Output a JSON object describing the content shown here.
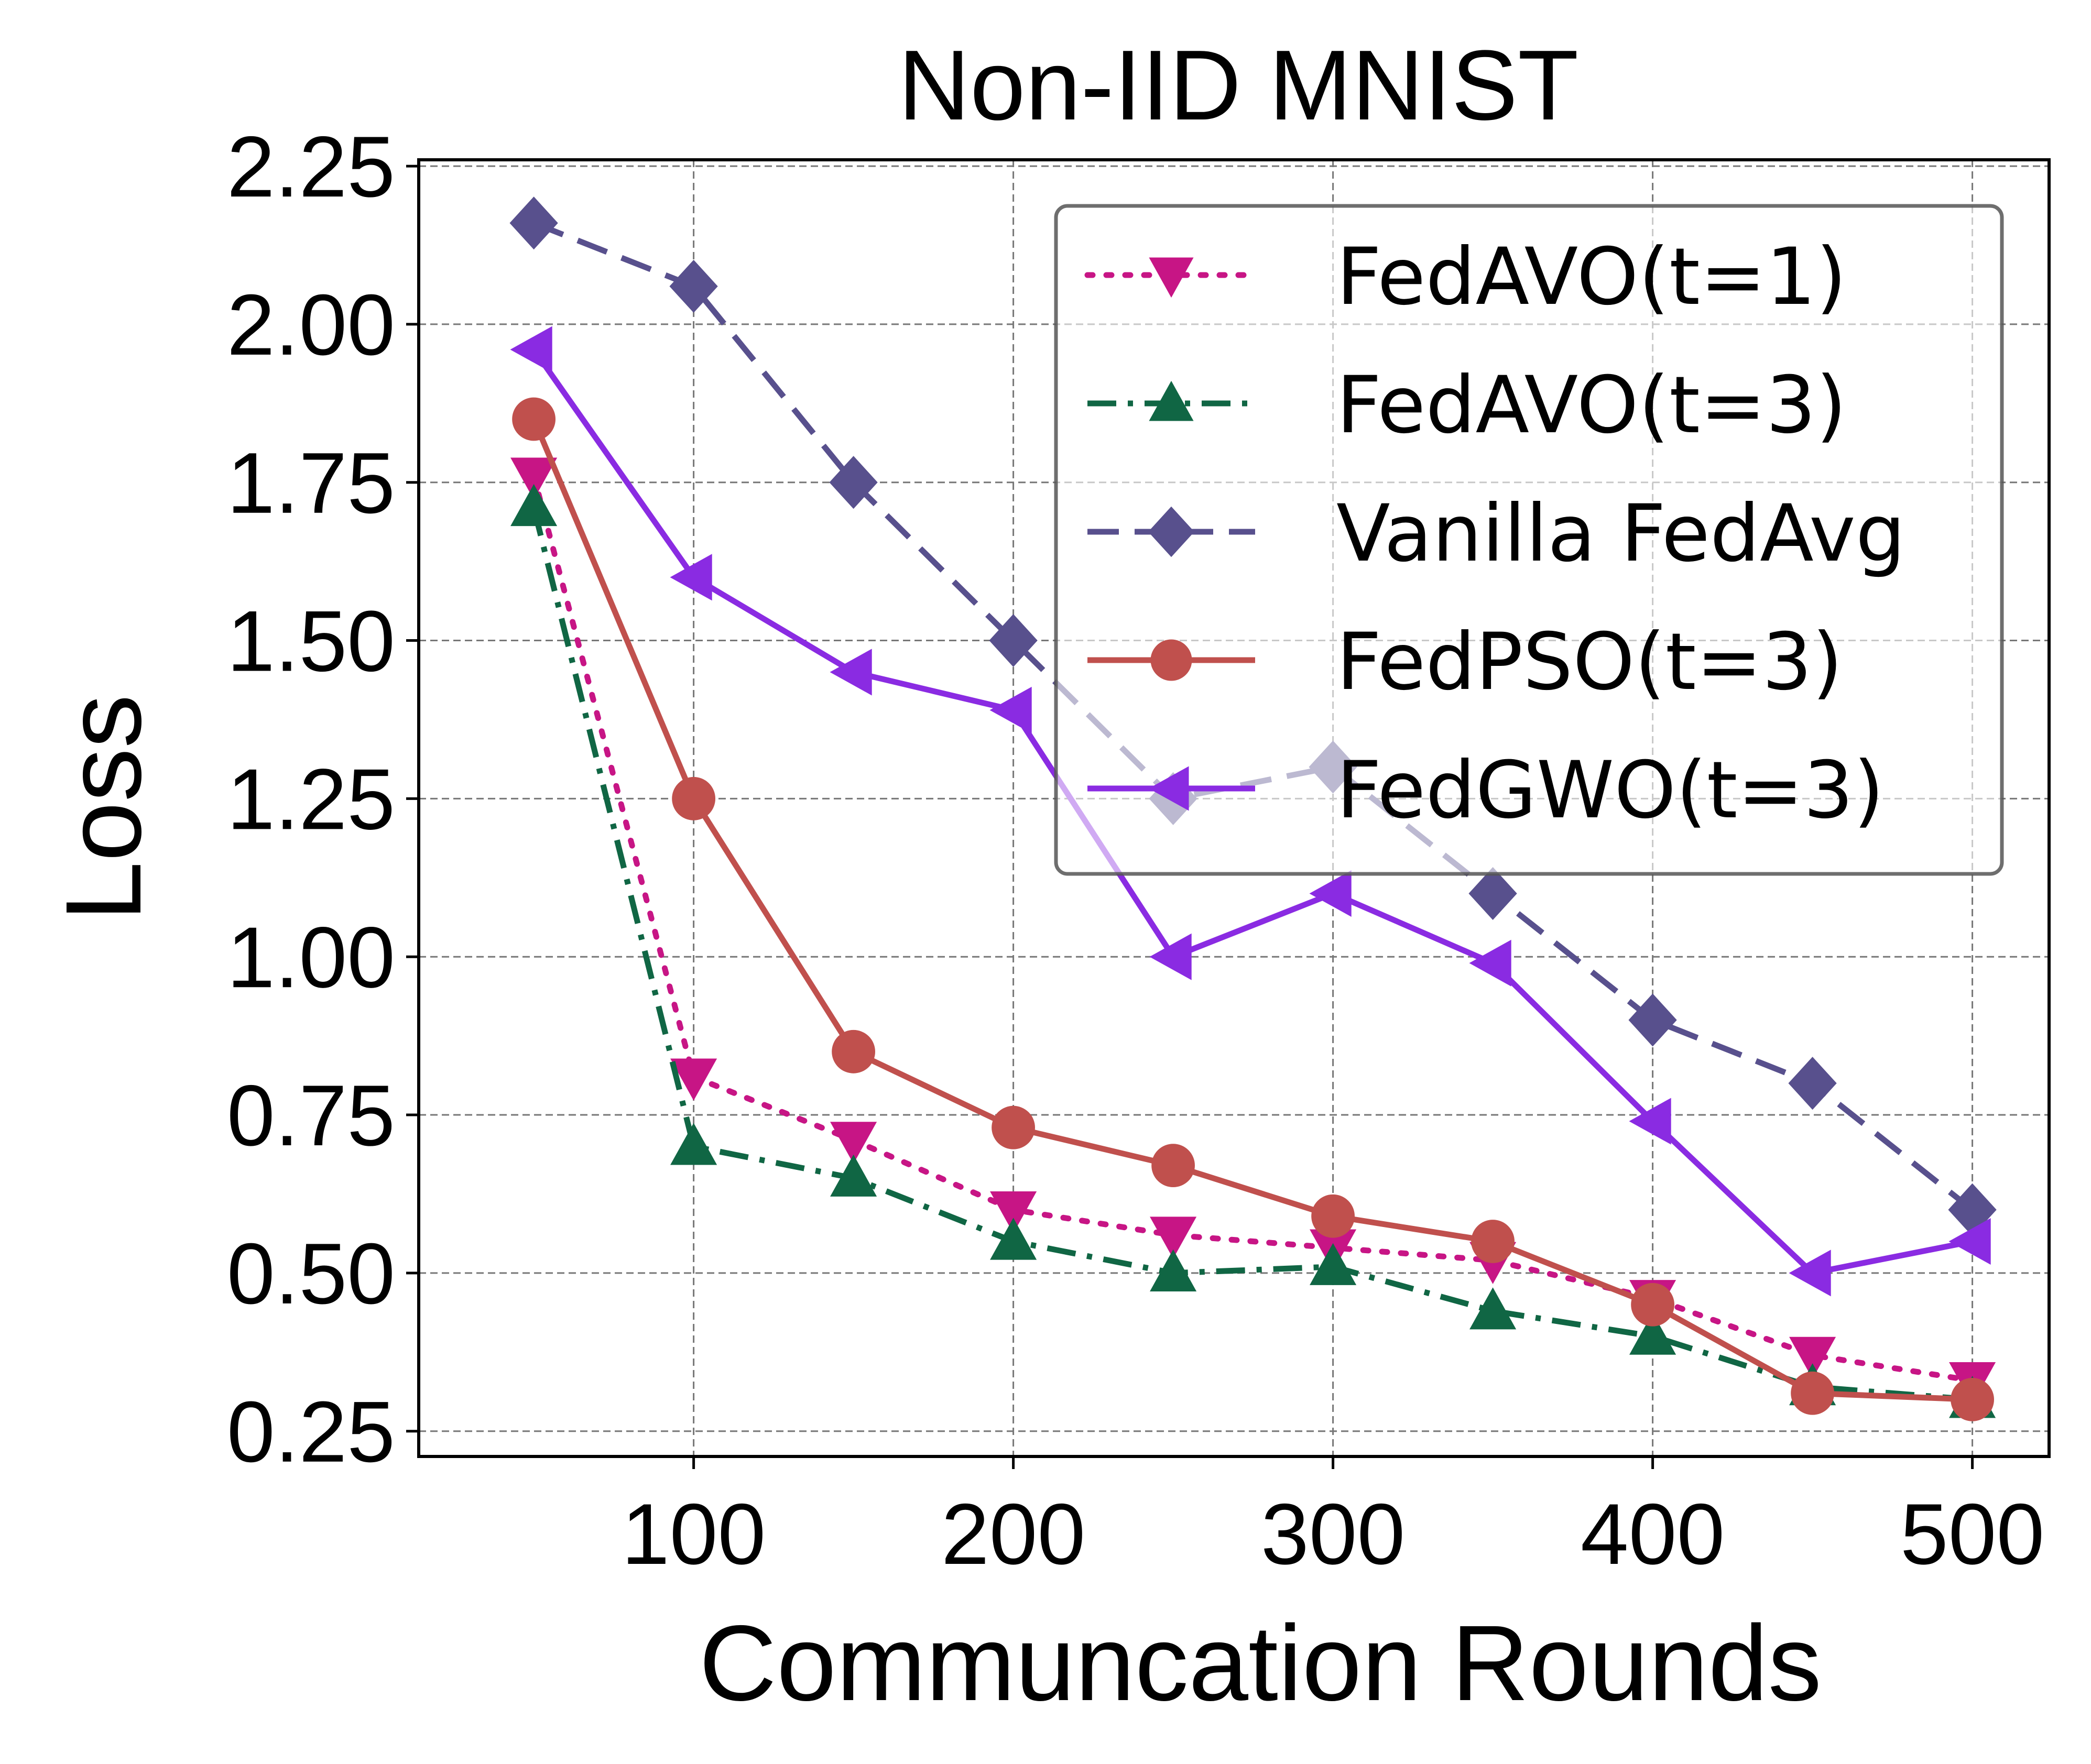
{
  "chart_data": {
    "type": "line",
    "title": "Non-IID MNIST",
    "xlabel": "Communcation Rounds",
    "ylabel": "Loss",
    "x": [
      50,
      100,
      150,
      200,
      250,
      300,
      350,
      400,
      450,
      500
    ],
    "xlim": [
      14,
      524
    ],
    "ylim": [
      0.21,
      2.26
    ],
    "xticks": [
      100,
      200,
      300,
      400,
      500
    ],
    "xtick_labels": [
      "100",
      "200",
      "300",
      "400",
      "500"
    ],
    "yticks": [
      0.25,
      0.5,
      0.75,
      1.0,
      1.25,
      1.5,
      1.75,
      2.0,
      2.25
    ],
    "ytick_labels": [
      "0.25",
      "0.50",
      "0.75",
      "1.00",
      "1.25",
      "1.50",
      "1.75",
      "2.00",
      "2.25"
    ],
    "grid": true,
    "legend_position": "top-right",
    "series": [
      {
        "name": "FedAVO(t=1)",
        "color": "#c71585",
        "dash": "dotted",
        "marker": "triangle-down",
        "values": [
          1.76,
          0.81,
          0.71,
          0.6,
          0.56,
          0.54,
          0.52,
          0.46,
          0.37,
          0.33
        ]
      },
      {
        "name": "FedAVO(t=3)",
        "color": "#106644",
        "dash": "dashdot",
        "marker": "triangle-up",
        "values": [
          1.71,
          0.7,
          0.65,
          0.55,
          0.5,
          0.51,
          0.44,
          0.4,
          0.32,
          0.3
        ]
      },
      {
        "name": "Vanilla FedAvg",
        "color": "#58508d",
        "dash": "dashed",
        "marker": "diamond",
        "values": [
          2.16,
          2.06,
          1.75,
          1.5,
          1.25,
          1.3,
          1.1,
          0.9,
          0.8,
          0.6
        ]
      },
      {
        "name": "FedPSO(t=3)",
        "color": "#c0504d",
        "dash": "solid",
        "marker": "circle",
        "values": [
          1.85,
          1.25,
          0.85,
          0.73,
          0.67,
          0.59,
          0.55,
          0.45,
          0.31,
          0.3
        ]
      },
      {
        "name": "FedGWO(t=3)",
        "color": "#8a2be2",
        "dash": "solid",
        "marker": "triangle-left",
        "values": [
          1.96,
          1.6,
          1.45,
          1.39,
          1.0,
          1.1,
          0.99,
          0.74,
          0.5,
          0.55
        ]
      }
    ]
  }
}
